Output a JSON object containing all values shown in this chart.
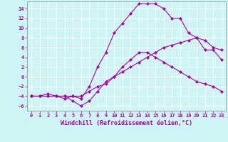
{
  "xlabel": "Windchill (Refroidissement éolien,°C)",
  "ylabel": "",
  "background_color": "#cef5f5",
  "grid_color": "#ffffff",
  "line_color": "#aa00aa",
  "xlim": [
    -0.5,
    23.5
  ],
  "ylim": [
    -7,
    15.5
  ],
  "xticks": [
    0,
    1,
    2,
    3,
    4,
    5,
    6,
    7,
    8,
    9,
    10,
    11,
    12,
    13,
    14,
    15,
    16,
    17,
    18,
    19,
    20,
    21,
    22,
    23
  ],
  "yticks": [
    -6,
    -4,
    -2,
    0,
    2,
    4,
    6,
    8,
    10,
    12,
    14
  ],
  "series1_x": [
    0,
    1,
    2,
    3,
    4,
    5,
    6,
    7,
    8,
    9,
    10,
    11,
    12,
    13,
    14,
    15,
    16,
    17,
    18,
    19,
    20,
    21,
    22,
    23
  ],
  "series1_y": [
    -4,
    -4,
    -4,
    -4,
    -4,
    -5,
    -6,
    -5,
    -3,
    -1,
    0,
    2,
    3.5,
    5,
    5,
    4,
    3,
    2,
    1,
    0,
    -1,
    -1.5,
    -2,
    -3
  ],
  "series2_x": [
    0,
    1,
    2,
    3,
    4,
    5,
    6,
    7,
    8,
    9,
    10,
    11,
    12,
    13,
    14,
    15,
    16,
    17,
    18,
    19,
    20,
    21,
    22,
    23
  ],
  "series2_y": [
    -4,
    -4,
    -3.5,
    -4,
    -4,
    -4,
    -4,
    -3,
    -2,
    -1.5,
    0,
    1,
    2,
    3,
    4,
    5,
    6,
    6.5,
    7,
    7.5,
    8,
    7.5,
    6,
    5.5
  ],
  "series3_x": [
    0,
    1,
    2,
    3,
    4,
    5,
    6,
    7,
    8,
    9,
    10,
    11,
    12,
    13,
    14,
    15,
    16,
    17,
    18,
    19,
    20,
    21,
    22,
    23
  ],
  "series3_y": [
    -4,
    -4,
    -4,
    -4,
    -4.5,
    -4,
    -4.5,
    -2,
    2,
    5,
    9,
    11,
    13,
    15,
    15,
    15,
    14,
    12,
    12,
    9,
    8,
    5.5,
    5.5,
    3.5
  ],
  "marker": "D",
  "markersize": 2.2,
  "linewidth": 0.8,
  "tick_fontsize": 5.0,
  "label_fontsize": 6.0
}
